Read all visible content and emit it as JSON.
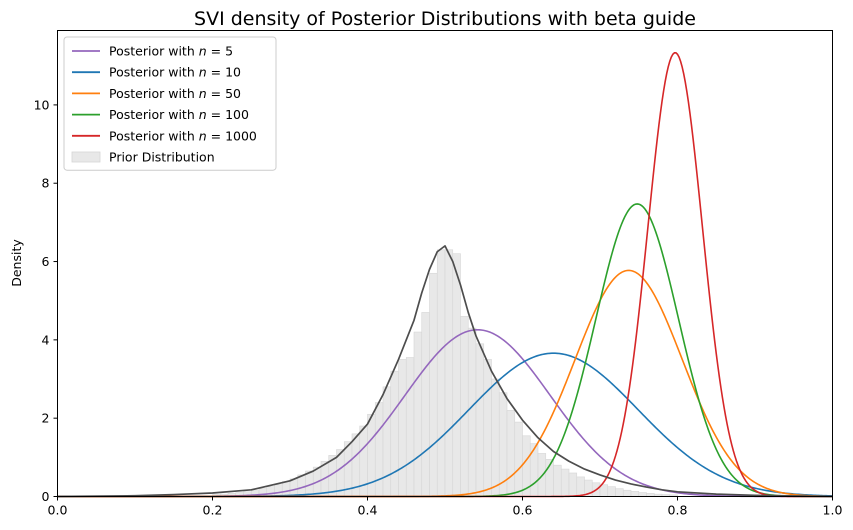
{
  "chart_data": {
    "type": "line",
    "title": "SVI density of Posterior Distributions with beta guide",
    "xlabel": "",
    "ylabel": "Density",
    "xlim": [
      0.0,
      1.0
    ],
    "ylim": [
      0,
      11.9
    ],
    "x_ticks": [
      "0.0",
      "0.2",
      "0.4",
      "0.6",
      "0.8",
      "1.0"
    ],
    "y_ticks": [
      "0",
      "2",
      "4",
      "6",
      "8",
      "10"
    ],
    "grid": false,
    "legend_position": "top-left",
    "series": [
      {
        "name": "Posterior with n = 5",
        "label_prefix": "Posterior with ",
        "label_var": "n",
        "label_eq": " = 5",
        "color": "#9467bd",
        "mean": 0.542,
        "sd": 0.0937
      },
      {
        "name": "Posterior with n = 10",
        "label_prefix": "Posterior with ",
        "label_var": "n",
        "label_eq": " = 10",
        "color": "#1f77b4",
        "mean": 0.64,
        "sd": 0.109
      },
      {
        "name": "Posterior with n = 50",
        "label_prefix": "Posterior with ",
        "label_var": "n",
        "label_eq": " = 50",
        "color": "#ff7f0e",
        "mean": 0.737,
        "sd": 0.0691
      },
      {
        "name": "Posterior with n = 100",
        "label_prefix": "Posterior with ",
        "label_var": "n",
        "label_eq": " = 100",
        "color": "#2ca02c",
        "mean": 0.748,
        "sd": 0.0534
      },
      {
        "name": "Posterior with n = 1000",
        "label_prefix": "Posterior with ",
        "label_var": "n",
        "label_eq": " = 1000",
        "color": "#d62728",
        "mean": 0.797,
        "sd": 0.0352
      }
    ],
    "prior_curve": {
      "color": "#4d4d4d",
      "x": [
        0.0,
        0.1,
        0.15,
        0.2,
        0.25,
        0.3,
        0.33,
        0.36,
        0.38,
        0.4,
        0.42,
        0.44,
        0.46,
        0.47,
        0.48,
        0.49,
        0.5,
        0.51,
        0.52,
        0.53,
        0.54,
        0.56,
        0.58,
        0.6,
        0.62,
        0.64,
        0.66,
        0.68,
        0.7,
        0.72,
        0.74,
        0.76,
        0.78,
        0.8,
        0.85,
        0.9,
        1.0
      ],
      "y": [
        0.0,
        0.02,
        0.05,
        0.09,
        0.17,
        0.4,
        0.65,
        1.0,
        1.4,
        1.85,
        2.6,
        3.5,
        4.5,
        5.2,
        5.8,
        6.25,
        6.4,
        6.0,
        5.4,
        4.7,
        4.1,
        3.2,
        2.5,
        1.95,
        1.5,
        1.15,
        0.9,
        0.7,
        0.55,
        0.42,
        0.32,
        0.24,
        0.17,
        0.12,
        0.06,
        0.03,
        0.0
      ]
    },
    "prior_histogram": {
      "name": "Prior Distribution",
      "color": "#e8e8e8",
      "bin_width": 0.01,
      "bin_starts": [
        0.2,
        0.21,
        0.22,
        0.23,
        0.24,
        0.25,
        0.26,
        0.27,
        0.28,
        0.29,
        0.3,
        0.31,
        0.32,
        0.33,
        0.34,
        0.35,
        0.36,
        0.37,
        0.38,
        0.39,
        0.4,
        0.41,
        0.42,
        0.43,
        0.44,
        0.45,
        0.46,
        0.47,
        0.48,
        0.49,
        0.5,
        0.51,
        0.52,
        0.53,
        0.54,
        0.55,
        0.56,
        0.57,
        0.58,
        0.59,
        0.6,
        0.61,
        0.62,
        0.63,
        0.64,
        0.65,
        0.66,
        0.67,
        0.68,
        0.69,
        0.7,
        0.71,
        0.72,
        0.73,
        0.74,
        0.75,
        0.76,
        0.77,
        0.78,
        0.79
      ],
      "values": [
        0.05,
        0.06,
        0.08,
        0.1,
        0.12,
        0.15,
        0.2,
        0.25,
        0.3,
        0.38,
        0.45,
        0.55,
        0.65,
        0.75,
        0.9,
        1.05,
        1.2,
        1.4,
        1.6,
        1.8,
        2.1,
        2.4,
        2.8,
        3.2,
        3.5,
        3.55,
        4.2,
        4.7,
        5.7,
        6.3,
        6.3,
        6.2,
        4.6,
        4.3,
        3.9,
        3.5,
        3.0,
        2.65,
        2.2,
        1.9,
        1.55,
        1.35,
        1.1,
        0.95,
        0.8,
        0.7,
        0.6,
        0.5,
        0.42,
        0.35,
        0.3,
        0.25,
        0.2,
        0.16,
        0.13,
        0.1,
        0.08,
        0.06,
        0.05,
        0.04
      ]
    }
  }
}
